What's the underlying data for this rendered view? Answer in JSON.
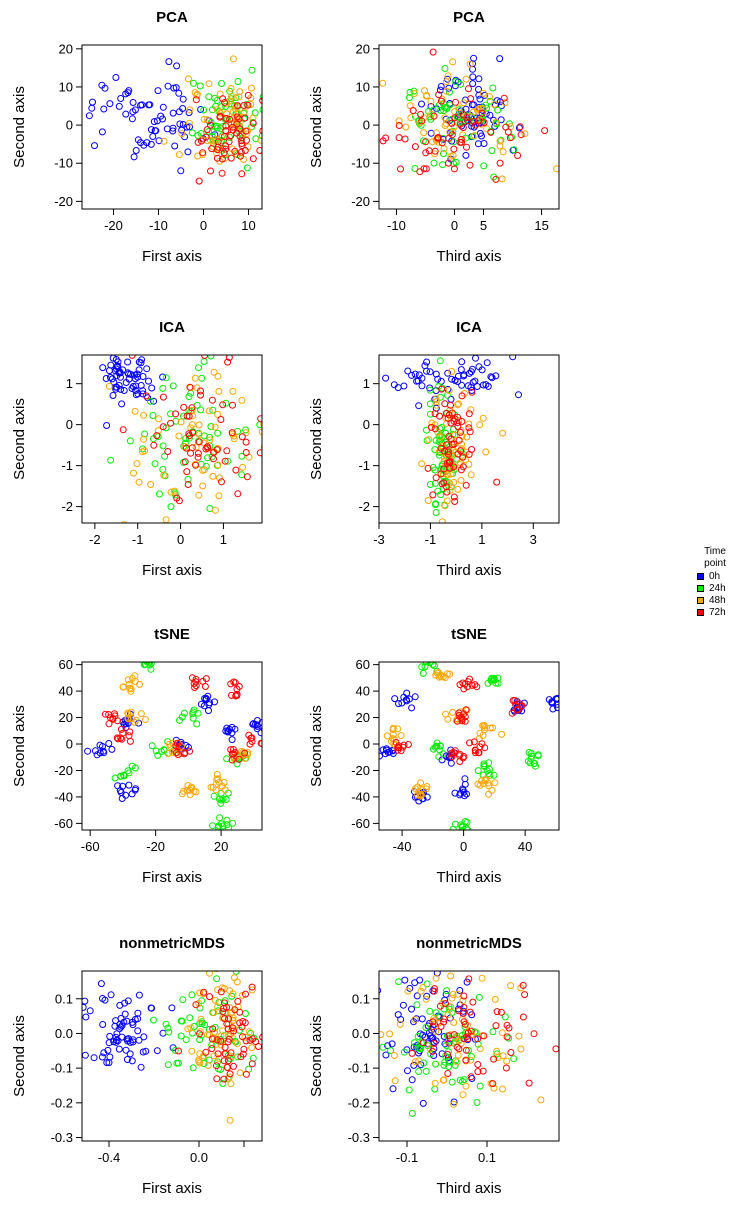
{
  "colors": {
    "0h": "#0000ff",
    "24h": "#00ee00",
    "48h": "#ffa500",
    "72h": "#ff0000"
  },
  "legend": {
    "title_line1": "Time",
    "title_line2": "point",
    "items": [
      {
        "label": "0h",
        "color": "#0000ff"
      },
      {
        "label": "24h",
        "color": "#00ee00"
      },
      {
        "label": "48h",
        "color": "#ffa500"
      },
      {
        "label": "72h",
        "color": "#ff0000"
      }
    ]
  },
  "chart_data": [
    {
      "type": "scatter",
      "title": "PCA",
      "xlabel": "First axis",
      "ylabel": "Second axis",
      "xlim": [
        -27,
        13
      ],
      "ylim": [
        -22,
        21
      ],
      "xticks": [
        -20,
        -10,
        0,
        10
      ],
      "xticklabels": [
        "-20",
        "-10",
        "0",
        "10"
      ],
      "yticks": [
        -20,
        -10,
        0,
        10,
        20
      ],
      "yticklabels": [
        "-20",
        "-10",
        "0",
        "10",
        "20"
      ],
      "groups": [
        {
          "name": "0h",
          "cx": -12,
          "cy": 3,
          "sx": 7,
          "sy": 6,
          "n": 70
        },
        {
          "name": "24h",
          "cx": 4,
          "cy": 1,
          "sx": 4,
          "sy": 5,
          "n": 65
        },
        {
          "name": "48h",
          "cx": 5,
          "cy": 1,
          "sx": 5,
          "sy": 6,
          "n": 65
        },
        {
          "name": "72h",
          "cx": 6,
          "cy": -3,
          "sx": 4,
          "sy": 5,
          "n": 60
        }
      ]
    },
    {
      "type": "scatter",
      "title": "PCA",
      "xlabel": "Third axis",
      "ylabel": "Second axis",
      "xlim": [
        -13,
        18
      ],
      "ylim": [
        -22,
        21
      ],
      "xticks": [
        -10,
        0,
        5,
        15
      ],
      "xticklabels": [
        "-10",
        "0",
        "5",
        "15"
      ],
      "yticks": [
        -20,
        -10,
        0,
        10,
        20
      ],
      "yticklabels": [
        "-20",
        "-10",
        "0",
        "10",
        "20"
      ],
      "groups": [
        {
          "name": "0h",
          "cx": 2,
          "cy": 3,
          "sx": 3.5,
          "sy": 6,
          "n": 70
        },
        {
          "name": "24h",
          "cx": -1,
          "cy": 0,
          "sx": 5,
          "sy": 5,
          "n": 65
        },
        {
          "name": "48h",
          "cx": 0,
          "cy": 1,
          "sx": 6,
          "sy": 6,
          "n": 65
        },
        {
          "name": "72h",
          "cx": -1,
          "cy": -3,
          "sx": 6,
          "sy": 6,
          "n": 60
        }
      ]
    },
    {
      "type": "scatter",
      "title": "ICA",
      "xlabel": "First axis",
      "ylabel": "Second axis",
      "xlim": [
        -2.3,
        1.9
      ],
      "ylim": [
        -2.4,
        1.7
      ],
      "xticks": [
        -2,
        -1,
        0,
        1
      ],
      "xticklabels": [
        "-2",
        "-1",
        "0",
        "1"
      ],
      "yticks": [
        -2,
        -1,
        0,
        1
      ],
      "yticklabels": [
        "-2",
        "-1",
        "0",
        "1"
      ],
      "groups": [
        {
          "name": "0h",
          "cx": -1.2,
          "cy": 1.2,
          "sx": 0.35,
          "sy": 0.35,
          "n": 60
        },
        {
          "name": "24h",
          "cx": 0.2,
          "cy": -0.3,
          "sx": 0.75,
          "sy": 0.8,
          "n": 65
        },
        {
          "name": "48h",
          "cx": 0.4,
          "cy": -0.4,
          "sx": 0.8,
          "sy": 0.8,
          "n": 65
        },
        {
          "name": "72h",
          "cx": 0.6,
          "cy": -0.1,
          "sx": 0.7,
          "sy": 0.8,
          "n": 60
        }
      ]
    },
    {
      "type": "scatter",
      "title": "ICA",
      "xlabel": "Third axis",
      "ylabel": "Second axis",
      "xlim": [
        -3,
        4
      ],
      "ylim": [
        -2.4,
        1.7
      ],
      "xticks": [
        -3,
        -1,
        1,
        3
      ],
      "xticklabels": [
        "-3",
        "-1",
        "1",
        "3"
      ],
      "yticks": [
        -2,
        -1,
        0,
        1
      ],
      "yticklabels": [
        "-2",
        "-1",
        "0",
        "1"
      ],
      "groups": [
        {
          "name": "0h",
          "cx": -0.3,
          "cy": 1.1,
          "sx": 1.3,
          "sy": 0.3,
          "n": 60
        },
        {
          "name": "24h",
          "cx": -0.5,
          "cy": -0.5,
          "sx": 0.3,
          "sy": 0.7,
          "n": 65
        },
        {
          "name": "48h",
          "cx": -0.2,
          "cy": -0.5,
          "sx": 0.6,
          "sy": 0.8,
          "n": 65
        },
        {
          "name": "72h",
          "cx": -0.2,
          "cy": -0.5,
          "sx": 0.5,
          "sy": 0.8,
          "n": 60
        }
      ]
    },
    {
      "type": "scatter",
      "title": "tSNE",
      "xlabel": "First axis",
      "ylabel": "Second axis",
      "xlim": [
        -65,
        45
      ],
      "ylim": [
        -65,
        62
      ],
      "xticks": [
        -60,
        -20,
        20
      ],
      "xticklabels": [
        "-60",
        "-20",
        "20"
      ],
      "yticks": [
        -60,
        -40,
        -20,
        0,
        20,
        40,
        60
      ],
      "yticklabels": [
        "-60",
        "-40",
        "-20",
        "0",
        "20",
        "40",
        "60"
      ],
      "groups": [
        {
          "name": "0h",
          "clusters": [
            [
              -55,
              -6
            ],
            [
              -38,
              -35
            ],
            [
              -38,
              15
            ],
            [
              -5,
              0
            ],
            [
              12,
              32
            ],
            [
              42,
              14
            ],
            [
              25,
              10
            ]
          ],
          "spread": 3,
          "n": 70
        },
        {
          "name": "24h",
          "clusters": [
            [
              -25,
              60
            ],
            [
              20,
              -62
            ],
            [
              -38,
              -22
            ],
            [
              -15,
              -5
            ],
            [
              0,
              20
            ],
            [
              22,
              -40
            ],
            [
              30,
              -12
            ]
          ],
          "spread": 3,
          "n": 65
        },
        {
          "name": "48h",
          "clusters": [
            [
              -35,
              45
            ],
            [
              -38,
              20
            ],
            [
              0,
              -35
            ],
            [
              18,
              -30
            ],
            [
              -8,
              -5
            ],
            [
              32,
              -10
            ]
          ],
          "spread": 3,
          "n": 65
        },
        {
          "name": "72h",
          "clusters": [
            [
              -45,
              20
            ],
            [
              -38,
              5
            ],
            [
              5,
              48
            ],
            [
              30,
              42
            ],
            [
              -5,
              -5
            ],
            [
              42,
              2
            ],
            [
              28,
              -8
            ]
          ],
          "spread": 3,
          "n": 60
        }
      ]
    },
    {
      "type": "scatter",
      "title": "tSNE",
      "xlabel": "Third axis",
      "ylabel": "Second axis",
      "xlim": [
        -55,
        62
      ],
      "ylim": [
        -65,
        62
      ],
      "xticks": [
        -40,
        0,
        40
      ],
      "xticklabels": [
        "-40",
        "0",
        "40"
      ],
      "yticks": [
        -60,
        -40,
        -20,
        0,
        20,
        40,
        60
      ],
      "yticklabels": [
        "-60",
        "-40",
        "-20",
        "0",
        "20",
        "40",
        "60"
      ],
      "groups": [
        {
          "name": "0h",
          "clusters": [
            [
              -50,
              -4
            ],
            [
              -38,
              33
            ],
            [
              -10,
              -8
            ],
            [
              0,
              -35
            ],
            [
              -28,
              -38
            ],
            [
              36,
              28
            ],
            [
              60,
              32
            ]
          ],
          "spread": 3,
          "n": 70
        },
        {
          "name": "24h",
          "clusters": [
            [
              -24,
              60
            ],
            [
              0,
              -62
            ],
            [
              14,
              -20
            ],
            [
              45,
              -12
            ],
            [
              20,
              48
            ],
            [
              -15,
              -5
            ]
          ],
          "spread": 3,
          "n": 65
        },
        {
          "name": "48h",
          "clusters": [
            [
              -16,
              52
            ],
            [
              -28,
              -35
            ],
            [
              -45,
              5
            ],
            [
              15,
              -30
            ],
            [
              15,
              10
            ],
            [
              -5,
              20
            ]
          ],
          "spread": 3,
          "n": 65
        },
        {
          "name": "72h",
          "clusters": [
            [
              2,
              45
            ],
            [
              35,
              28
            ],
            [
              -5,
              -10
            ],
            [
              0,
              20
            ],
            [
              -40,
              0
            ],
            [
              10,
              -5
            ]
          ],
          "spread": 3,
          "n": 60
        }
      ]
    },
    {
      "type": "scatter",
      "title": "nonmetricMDS",
      "xlabel": "First axis",
      "ylabel": "Second axis",
      "xlim": [
        -0.52,
        0.28
      ],
      "ylim": [
        -0.31,
        0.18
      ],
      "xticks": [
        -0.4,
        0.0,
        0.2
      ],
      "xticklabels": [
        "-0.4",
        "0.0",
        ""
      ],
      "yticks": [
        -0.3,
        -0.2,
        -0.1,
        0.0,
        0.1
      ],
      "yticklabels": [
        "-0.3",
        "-0.2",
        "-0.1",
        "0.0",
        "0.1"
      ],
      "groups": [
        {
          "name": "0h",
          "cx": -0.35,
          "cy": 0.0,
          "sx": 0.1,
          "sy": 0.06,
          "n": 70
        },
        {
          "name": "24h",
          "cx": 0.05,
          "cy": 0.02,
          "sx": 0.1,
          "sy": 0.1,
          "n": 65
        },
        {
          "name": "48h",
          "cx": 0.1,
          "cy": 0.02,
          "sx": 0.08,
          "sy": 0.09,
          "n": 65
        },
        {
          "name": "72h",
          "cx": 0.15,
          "cy": -0.02,
          "sx": 0.07,
          "sy": 0.08,
          "n": 60
        }
      ]
    },
    {
      "type": "scatter",
      "title": "nonmetricMDS",
      "xlabel": "Third axis",
      "ylabel": "Second axis",
      "xlim": [
        -0.17,
        0.28
      ],
      "ylim": [
        -0.31,
        0.18
      ],
      "xticks": [
        -0.1,
        0.1
      ],
      "xticklabels": [
        "-0.1",
        "0.1"
      ],
      "yticks": [
        -0.3,
        -0.2,
        -0.1,
        0.0,
        0.1
      ],
      "yticklabels": [
        "-0.3",
        "-0.2",
        "-0.1",
        "0.0",
        "0.1"
      ],
      "groups": [
        {
          "name": "0h",
          "cx": -0.05,
          "cy": 0.0,
          "sx": 0.06,
          "sy": 0.08,
          "n": 70
        },
        {
          "name": "24h",
          "cx": 0.0,
          "cy": -0.02,
          "sx": 0.06,
          "sy": 0.09,
          "n": 65
        },
        {
          "name": "48h",
          "cx": 0.05,
          "cy": 0.0,
          "sx": 0.08,
          "sy": 0.1,
          "n": 65
        },
        {
          "name": "72h",
          "cx": 0.06,
          "cy": 0.02,
          "sx": 0.08,
          "sy": 0.08,
          "n": 60
        }
      ]
    }
  ]
}
